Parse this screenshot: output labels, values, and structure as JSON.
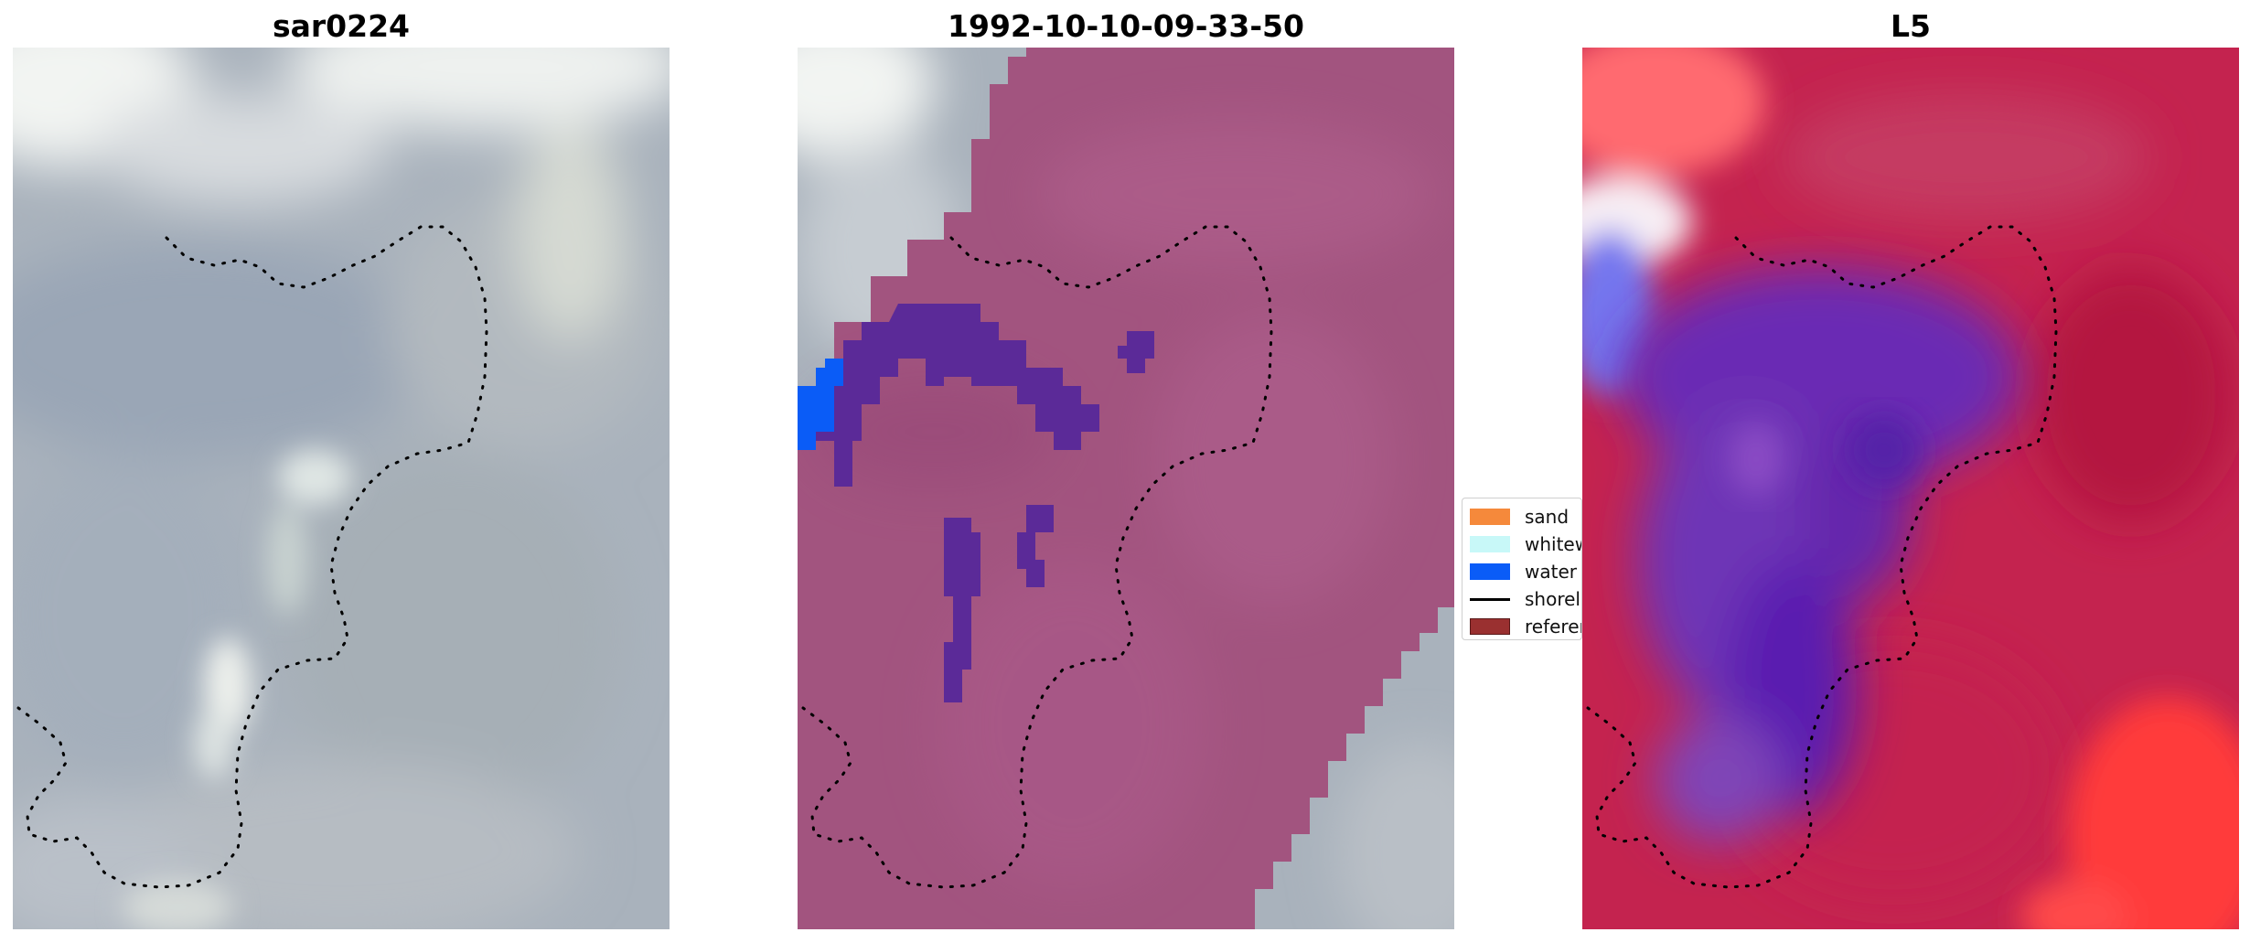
{
  "panels": [
    {
      "title": "sar0224"
    },
    {
      "title": "1992-10-10-09-33-50"
    },
    {
      "title": "L5"
    }
  ],
  "legend": {
    "items": [
      {
        "label": "sand",
        "color": "#f5893b",
        "kind": "patch"
      },
      {
        "label": "whitewater",
        "color": "#c8f8f8",
        "kind": "patch"
      },
      {
        "label": "water",
        "color": "#0a5cf7",
        "kind": "patch"
      },
      {
        "label": "shoreline",
        "color": "#000000",
        "kind": "line"
      },
      {
        "label": "reference",
        "color": "#9a3030",
        "kind": "patch"
      }
    ]
  },
  "colors": {
    "sar_base": "#aab3bd",
    "classified_overlay": "#a2547f",
    "water_class": "#5b2a98",
    "index_positive": "#c4234f",
    "index_negative": "#6a2ab4",
    "index_bright_red": "#ff3b3b"
  }
}
